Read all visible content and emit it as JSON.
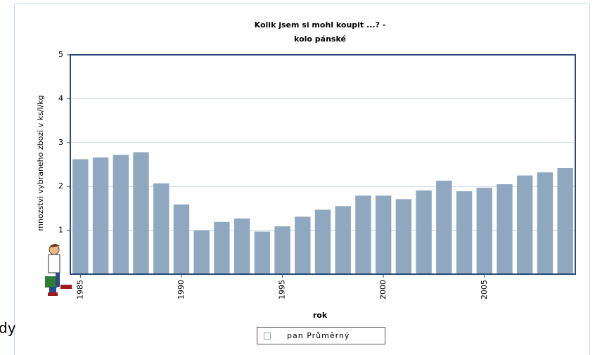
{
  "background_text": "dy",
  "chart_data": {
    "type": "bar",
    "title": "Kolik jsem si  mohl koupit ...? -",
    "subtitle": "kolo pánské",
    "x_label": "rok",
    "y_label": "mnozstvi vybraneho zbozi v ks/l/kg",
    "categories": [
      "1985",
      null,
      null,
      null,
      null,
      "1990",
      null,
      null,
      null,
      null,
      "1995",
      null,
      null,
      null,
      null,
      "2000",
      null,
      null,
      null,
      null,
      "2005",
      null,
      null,
      null,
      null
    ],
    "series": [
      {
        "name": "pan Průměrný",
        "color": "#8fa8c0",
        "values": [
          2.62,
          2.66,
          2.72,
          2.78,
          2.07,
          1.59,
          1.0,
          1.19,
          1.27,
          0.97,
          1.09,
          1.31,
          1.47,
          1.55,
          1.79,
          1.79,
          1.71,
          1.91,
          2.13,
          1.89,
          1.97,
          2.05,
          2.25,
          2.32,
          2.42
        ]
      }
    ],
    "ylim": [
      0,
      5
    ],
    "yticks": [
      1,
      2,
      3,
      4,
      5
    ],
    "grid": true
  }
}
